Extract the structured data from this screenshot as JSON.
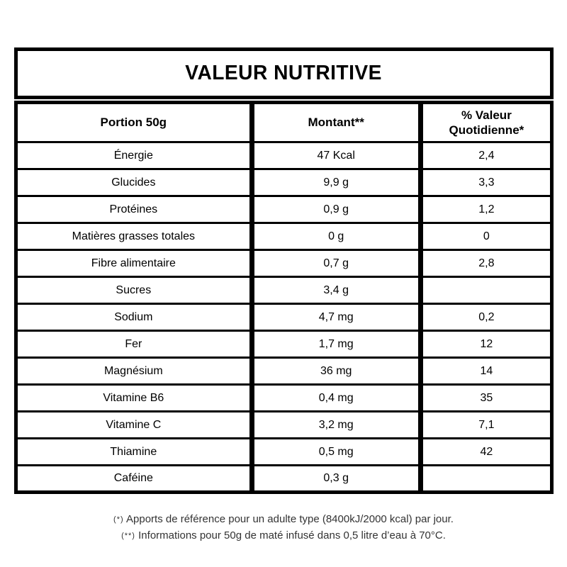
{
  "title": "VALEUR NUTRITIVE",
  "table": {
    "headers": {
      "portion": "Portion 50g",
      "amount": "Montant**",
      "daily_value": "% Valeur Quotidienne*"
    },
    "rows": [
      {
        "label": "Énergie",
        "amount": "47 Kcal",
        "dv": "2,4"
      },
      {
        "label": "Glucides",
        "amount": "9,9 g",
        "dv": "3,3"
      },
      {
        "label": "Protéines",
        "amount": "0,9 g",
        "dv": "1,2"
      },
      {
        "label": "Matières grasses totales",
        "amount": "0 g",
        "dv": "0"
      },
      {
        "label": "Fibre alimentaire",
        "amount": "0,7 g",
        "dv": "2,8"
      },
      {
        "label": "Sucres",
        "amount": "3,4 g",
        "dv": ""
      },
      {
        "label": "Sodium",
        "amount": "4,7 mg",
        "dv": "0,2"
      },
      {
        "label": "Fer",
        "amount": "1,7 mg",
        "dv": "12"
      },
      {
        "label": "Magnésium",
        "amount": "36 mg",
        "dv": "14"
      },
      {
        "label": "Vitamine B6",
        "amount": "0,4 mg",
        "dv": "35"
      },
      {
        "label": "Vitamine C",
        "amount": "3,2 mg",
        "dv": "7,1"
      },
      {
        "label": "Thiamine",
        "amount": "0,5 mg",
        "dv": "42"
      },
      {
        "label": "Caféine",
        "amount": "0,3 g",
        "dv": ""
      }
    ]
  },
  "footnotes": [
    {
      "marker": "(*)",
      "text": "Apports de référence pour un adulte type (8400kJ/2000 kcal) par jour."
    },
    {
      "marker": "(**)",
      "text": "Informations pour 50g de maté infusé dans 0,5 litre d’eau à 70°C."
    }
  ],
  "colors": {
    "border": "#000000",
    "text": "#000000",
    "footnote_text": "#333333",
    "background": "#ffffff"
  }
}
